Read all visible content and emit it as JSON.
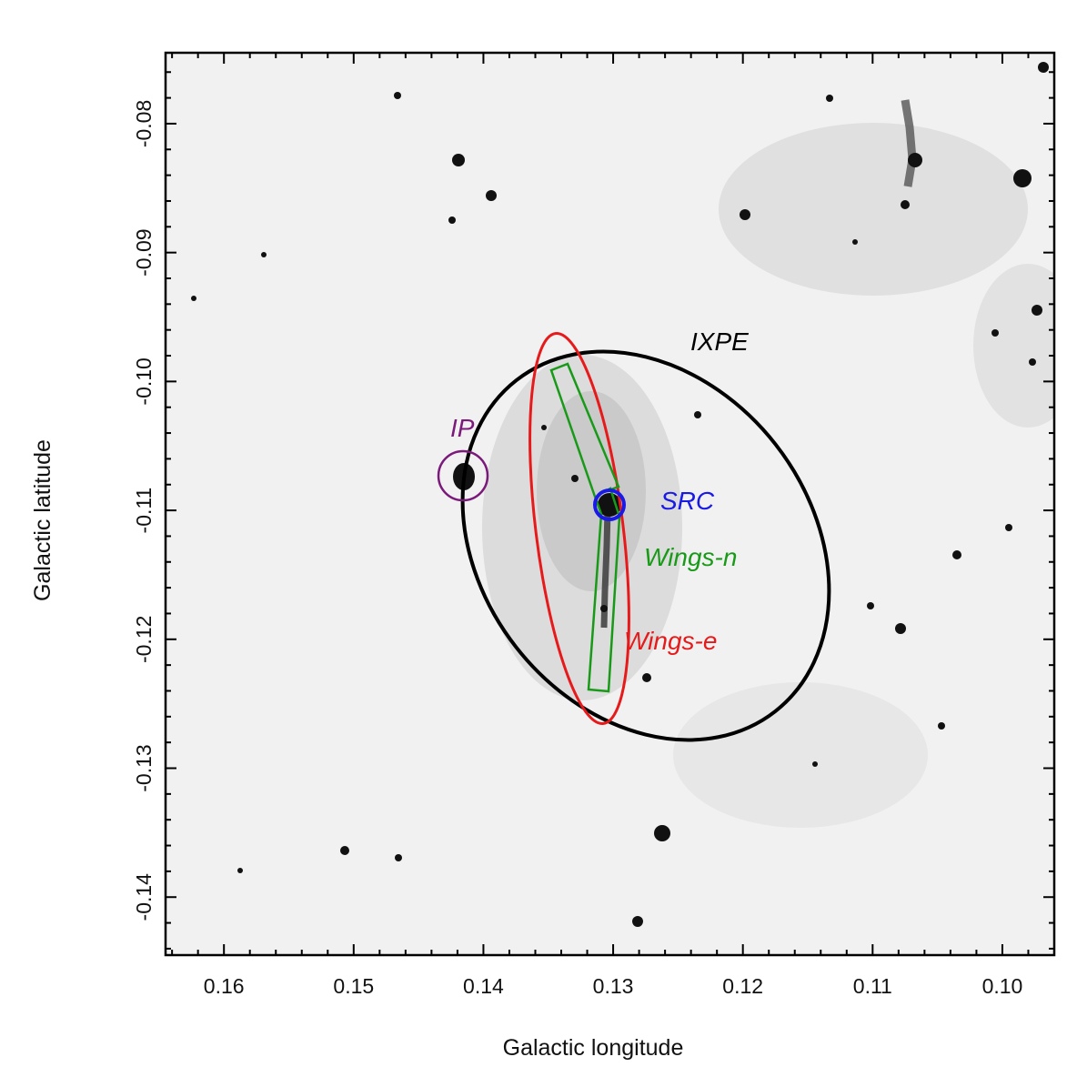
{
  "map": {
    "xlabel": "Galactic longitude",
    "ylabel": "Galactic latitude",
    "x_ticks": [
      {
        "value": 0.16,
        "label": "0.16"
      },
      {
        "value": 0.15,
        "label": "0.15"
      },
      {
        "value": 0.14,
        "label": "0.14"
      },
      {
        "value": 0.13,
        "label": "0.13"
      },
      {
        "value": 0.12,
        "label": "0.12"
      },
      {
        "value": 0.11,
        "label": "0.11"
      },
      {
        "value": 0.1,
        "label": "0.10"
      }
    ],
    "y_ticks": [
      {
        "value": -0.08,
        "label": "-0.08"
      },
      {
        "value": -0.09,
        "label": "-0.09"
      },
      {
        "value": -0.1,
        "label": "-0.10"
      },
      {
        "value": -0.11,
        "label": "-0.11"
      },
      {
        "value": -0.12,
        "label": "-0.12"
      },
      {
        "value": -0.13,
        "label": "-0.13"
      },
      {
        "value": -0.14,
        "label": "-0.14"
      }
    ],
    "xlim": [
      0.1645,
      0.096
    ],
    "ylim": [
      -0.0745,
      -0.1445
    ],
    "background": "grayscale sky image (inverted, dark = bright)"
  },
  "regions": [
    {
      "label": "IXPE",
      "shape": "ellipse",
      "color": "#000000"
    },
    {
      "label": "IP",
      "shape": "circle",
      "color": "#7a1a7a"
    },
    {
      "label": "SRC",
      "shape": "circle",
      "color": "#1a1ae6"
    },
    {
      "label": "Wings-n",
      "shape": "rotated boxes",
      "color": "#189a18"
    },
    {
      "label": "Wings-e",
      "shape": "ellipse",
      "color": "#e61a1a"
    }
  ]
}
